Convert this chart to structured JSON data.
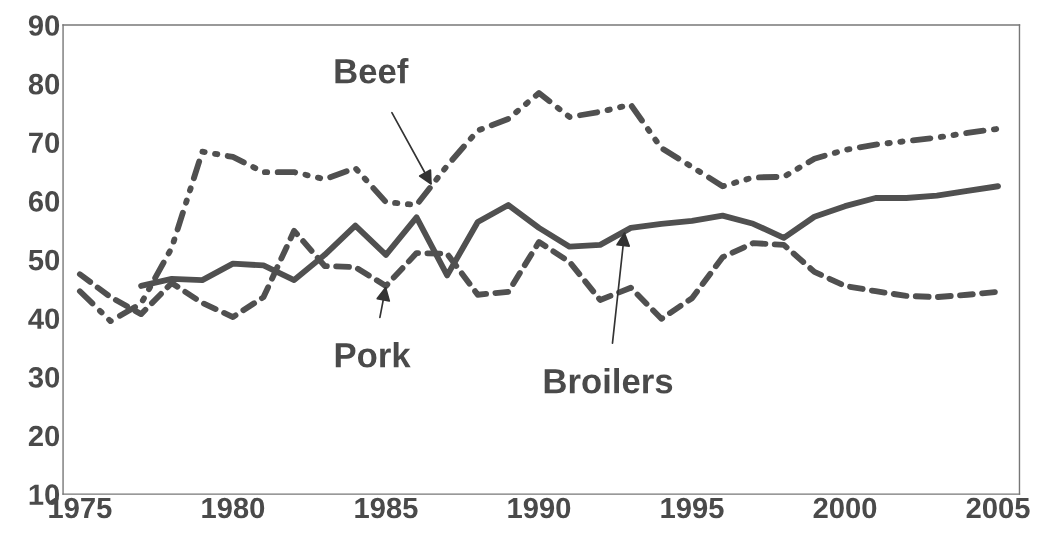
{
  "chart_data": {
    "type": "line",
    "x": [
      1975,
      1976,
      1977,
      1978,
      1979,
      1980,
      1981,
      1982,
      1983,
      1984,
      1985,
      1986,
      1987,
      1988,
      1989,
      1990,
      1991,
      1992,
      1993,
      1994,
      1995,
      1996,
      1997,
      1998,
      1999,
      2000,
      2001,
      2002,
      2003,
      2004,
      2005
    ],
    "series": [
      {
        "color": "#505050",
        "line_style": "dashdot",
        "values": [
          44.6,
          39.5,
          42.5,
          52,
          68.4,
          67.5,
          64.9,
          64.9,
          63.7,
          65.6,
          59.8,
          59.3,
          66,
          72,
          74,
          78.4,
          74.3,
          75.2,
          76.4,
          69,
          65.8,
          62.5,
          64,
          64.1,
          67.2,
          68.7,
          69.6,
          70.2,
          70.8,
          71.6,
          72.3
        ]
      },
      {
        "color": "#505050",
        "line_style": "dashed",
        "values": [
          47.5,
          43.6,
          40.7,
          46,
          42.6,
          40.2,
          43.6,
          54.9,
          48.9,
          48.7,
          45.5,
          51.1,
          51,
          44,
          44.5,
          53,
          49.6,
          43.1,
          45.2,
          39.9,
          43.4,
          50.4,
          52.8,
          52.5,
          47.9,
          45.5,
          44.6,
          43.8,
          43.6,
          44,
          44.5
        ]
      },
      {
        "color": "#505050",
        "line_style": "solid",
        "values": [
          null,
          null,
          45.5,
          46.7,
          46.5,
          49.3,
          49,
          46.5,
          50.8,
          55.8,
          50.8,
          57.2,
          47.3,
          56.4,
          59.3,
          55.4,
          52.2,
          52.5,
          55.4,
          56.1,
          56.6,
          57.5,
          56.1,
          53.7,
          57.3,
          59.1,
          60.5,
          60.5,
          60.9,
          61.7,
          62.5
        ]
      }
    ],
    "annotations": [
      {
        "text": "Beef",
        "x": 1986.5,
        "y": 62.65
      },
      {
        "text": "Pork",
        "x": 1985,
        "y": 45.5
      },
      {
        "text": "Broilers",
        "x": 1992.8,
        "y": 54.8
      }
    ],
    "xlim": [
      1974.45,
      2005.7
    ],
    "xticks": [
      1975,
      1980,
      1985,
      1990,
      1995,
      2000,
      2005
    ],
    "ylim": [
      10,
      90
    ],
    "yticks": [
      10,
      20,
      30,
      40,
      50,
      60,
      70,
      80,
      90
    ],
    "grid": false,
    "legend": false
  }
}
